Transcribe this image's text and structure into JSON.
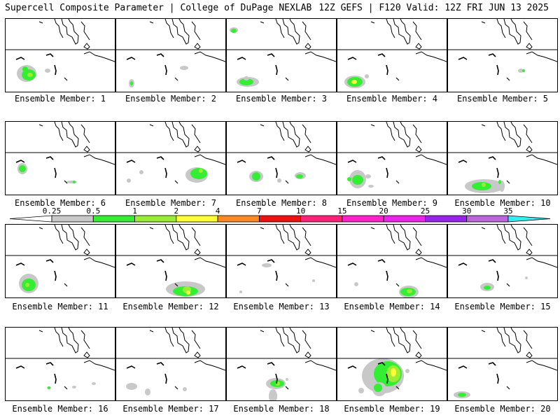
{
  "header": {
    "title": "Supercell Composite Parameter | College of DuPage NEXLAB",
    "valid": "12Z GEFS | F120 Valid: 12Z FRI JUN 13 2025"
  },
  "colorbar": {
    "levels": [
      "0.25",
      "0.5",
      "1",
      "2",
      "4",
      "7",
      "10",
      "15",
      "20",
      "25",
      "30",
      "35"
    ],
    "colors": [
      "#c8c8c8",
      "#33ee33",
      "#99ee33",
      "#ffff33",
      "#ff8822",
      "#ee1111",
      "#ff2277",
      "#ff22cc",
      "#ee22ee",
      "#9922ee",
      "#bb66dd",
      "#33eeee"
    ]
  },
  "members": [
    {
      "label": "Ensemble Member: 1"
    },
    {
      "label": "Ensemble Member: 2"
    },
    {
      "label": "Ensemble Member: 3"
    },
    {
      "label": "Ensemble Member: 4"
    },
    {
      "label": "Ensemble Member: 5"
    },
    {
      "label": "Ensemble Member: 6"
    },
    {
      "label": "Ensemble Member: 7"
    },
    {
      "label": "Ensemble Member: 8"
    },
    {
      "label": "Ensemble Member: 9"
    },
    {
      "label": "Ensemble Member: 10"
    },
    {
      "label": "Ensemble Member: 11"
    },
    {
      "label": "Ensemble Member: 12"
    },
    {
      "label": "Ensemble Member: 13"
    },
    {
      "label": "Ensemble Member: 14"
    },
    {
      "label": "Ensemble Member: 15"
    },
    {
      "label": "Ensemble Member: 16"
    },
    {
      "label": "Ensemble Member: 17"
    },
    {
      "label": "Ensemble Member: 18"
    },
    {
      "label": "Ensemble Member: 19"
    },
    {
      "label": "Ensemble Member: 20"
    }
  ]
}
